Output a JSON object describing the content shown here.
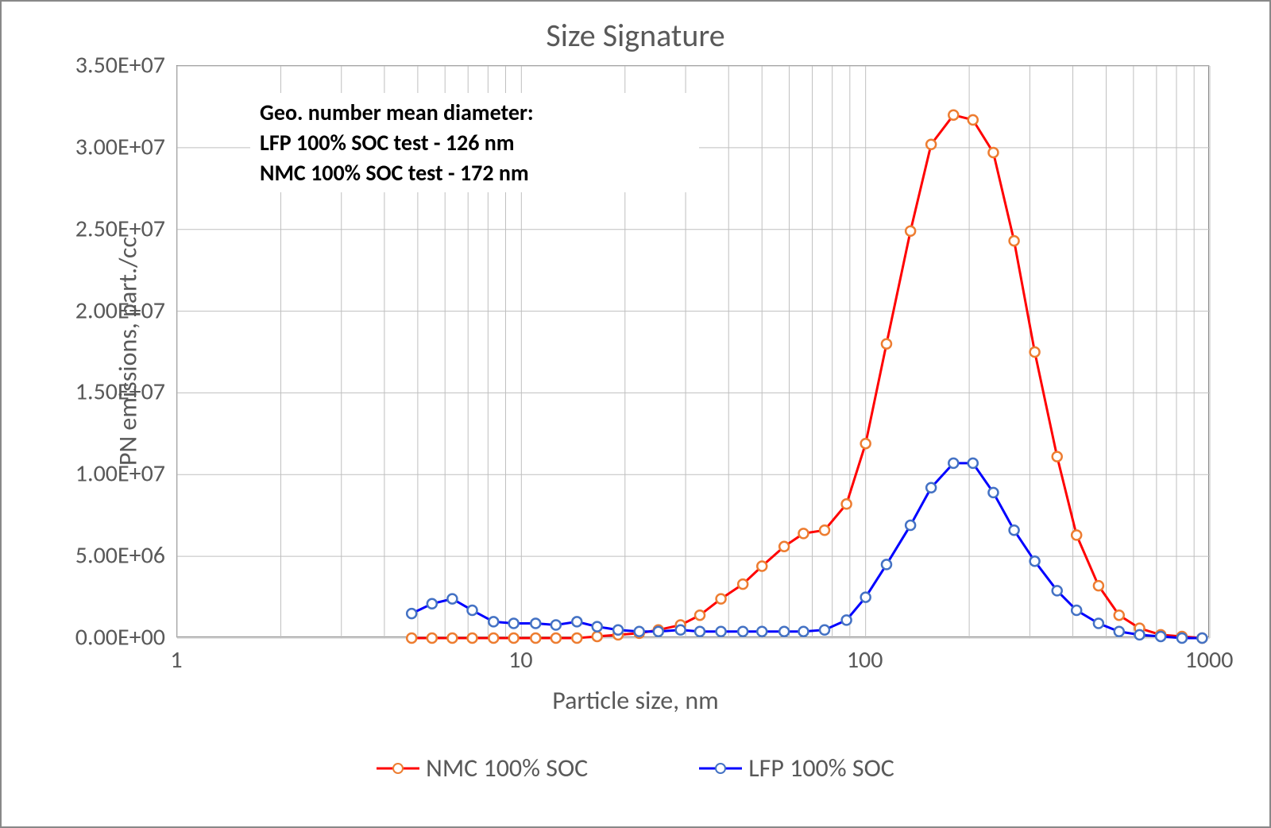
{
  "chart": {
    "type": "line",
    "title": "Size Signature",
    "title_fontsize": 40,
    "title_color": "#595959",
    "background_color": "#ffffff",
    "border_color": "#888888",
    "grid_color": "#bfbfbf",
    "tick_font_color": "#595959",
    "tick_fontsize": 30,
    "axis_label_fontsize": 32,
    "x_axis": {
      "title": "Particle size, nm",
      "scale": "log",
      "min": 1,
      "max": 1000,
      "major_ticks": [
        1,
        10,
        100,
        1000
      ],
      "tick_labels": [
        "1",
        "10",
        "100",
        "1000"
      ]
    },
    "y_axis": {
      "title": "PN emissions, part./cc",
      "scale": "linear",
      "min": 0,
      "max": 35000000,
      "tick_step": 5000000,
      "tick_labels": [
        "0.00E+00",
        "5.00E+06",
        "1.00E+07",
        "1.50E+07",
        "2.00E+07",
        "2.50E+07",
        "3.00E+07",
        "3.50E+07"
      ]
    },
    "annotation": {
      "lines": [
        "Geo. number mean diameter:",
        "LFP 100% SOC test - 126 nm",
        "NMC 100% SOC test - 172 nm"
      ],
      "font_weight": "bold",
      "fontsize": 28
    },
    "series": [
      {
        "name": "NMC 100% SOC",
        "line_color": "#ff0000",
        "marker_border": "#ed7d31",
        "marker_fill": "#ffffff",
        "marker_style": "circle",
        "marker_size": 12,
        "line_width": 3,
        "data": [
          {
            "x": 4.8,
            "y": 0
          },
          {
            "x": 5.5,
            "y": 0
          },
          {
            "x": 6.3,
            "y": 0
          },
          {
            "x": 7.2,
            "y": 0
          },
          {
            "x": 8.3,
            "y": 0
          },
          {
            "x": 9.5,
            "y": 0
          },
          {
            "x": 11,
            "y": 0
          },
          {
            "x": 12.6,
            "y": 0
          },
          {
            "x": 14.5,
            "y": 0
          },
          {
            "x": 16.6,
            "y": 100000
          },
          {
            "x": 19.1,
            "y": 200000
          },
          {
            "x": 22,
            "y": 300000
          },
          {
            "x": 25,
            "y": 500000
          },
          {
            "x": 29,
            "y": 800000
          },
          {
            "x": 33,
            "y": 1400000
          },
          {
            "x": 38,
            "y": 2400000
          },
          {
            "x": 44,
            "y": 3300000
          },
          {
            "x": 50,
            "y": 4400000
          },
          {
            "x": 58,
            "y": 5600000
          },
          {
            "x": 66,
            "y": 6400000
          },
          {
            "x": 76,
            "y": 6600000
          },
          {
            "x": 88,
            "y": 8200000
          },
          {
            "x": 100,
            "y": 11900000
          },
          {
            "x": 115,
            "y": 18000000
          },
          {
            "x": 135,
            "y": 24900000
          },
          {
            "x": 155,
            "y": 30200000
          },
          {
            "x": 180,
            "y": 32000000
          },
          {
            "x": 205,
            "y": 31700000
          },
          {
            "x": 235,
            "y": 29700000
          },
          {
            "x": 270,
            "y": 24300000
          },
          {
            "x": 310,
            "y": 17500000
          },
          {
            "x": 360,
            "y": 11100000
          },
          {
            "x": 410,
            "y": 6300000
          },
          {
            "x": 475,
            "y": 3200000
          },
          {
            "x": 545,
            "y": 1400000
          },
          {
            "x": 625,
            "y": 600000
          },
          {
            "x": 720,
            "y": 200000
          },
          {
            "x": 830,
            "y": 100000
          },
          {
            "x": 950,
            "y": 0
          }
        ]
      },
      {
        "name": "LFP 100% SOC",
        "line_color": "#0000ff",
        "marker_border": "#4472c4",
        "marker_fill": "#ffffff",
        "marker_style": "circle",
        "marker_size": 12,
        "line_width": 3,
        "data": [
          {
            "x": 4.8,
            "y": 1500000
          },
          {
            "x": 5.5,
            "y": 2100000
          },
          {
            "x": 6.3,
            "y": 2400000
          },
          {
            "x": 7.2,
            "y": 1700000
          },
          {
            "x": 8.3,
            "y": 1000000
          },
          {
            "x": 9.5,
            "y": 900000
          },
          {
            "x": 11,
            "y": 900000
          },
          {
            "x": 12.6,
            "y": 800000
          },
          {
            "x": 14.5,
            "y": 1000000
          },
          {
            "x": 16.6,
            "y": 700000
          },
          {
            "x": 19.1,
            "y": 500000
          },
          {
            "x": 22,
            "y": 400000
          },
          {
            "x": 25,
            "y": 400000
          },
          {
            "x": 29,
            "y": 500000
          },
          {
            "x": 33,
            "y": 400000
          },
          {
            "x": 38,
            "y": 400000
          },
          {
            "x": 44,
            "y": 400000
          },
          {
            "x": 50,
            "y": 400000
          },
          {
            "x": 58,
            "y": 400000
          },
          {
            "x": 66,
            "y": 400000
          },
          {
            "x": 76,
            "y": 500000
          },
          {
            "x": 88,
            "y": 1100000
          },
          {
            "x": 100,
            "y": 2500000
          },
          {
            "x": 115,
            "y": 4500000
          },
          {
            "x": 135,
            "y": 6900000
          },
          {
            "x": 155,
            "y": 9200000
          },
          {
            "x": 180,
            "y": 10700000
          },
          {
            "x": 205,
            "y": 10700000
          },
          {
            "x": 235,
            "y": 8900000
          },
          {
            "x": 270,
            "y": 6600000
          },
          {
            "x": 310,
            "y": 4700000
          },
          {
            "x": 360,
            "y": 2900000
          },
          {
            "x": 410,
            "y": 1700000
          },
          {
            "x": 475,
            "y": 900000
          },
          {
            "x": 545,
            "y": 400000
          },
          {
            "x": 625,
            "y": 200000
          },
          {
            "x": 720,
            "y": 100000
          },
          {
            "x": 830,
            "y": 0
          },
          {
            "x": 950,
            "y": 0
          }
        ]
      }
    ],
    "legend": {
      "position": "bottom",
      "items": [
        "NMC 100% SOC",
        "LFP 100% SOC"
      ]
    }
  }
}
